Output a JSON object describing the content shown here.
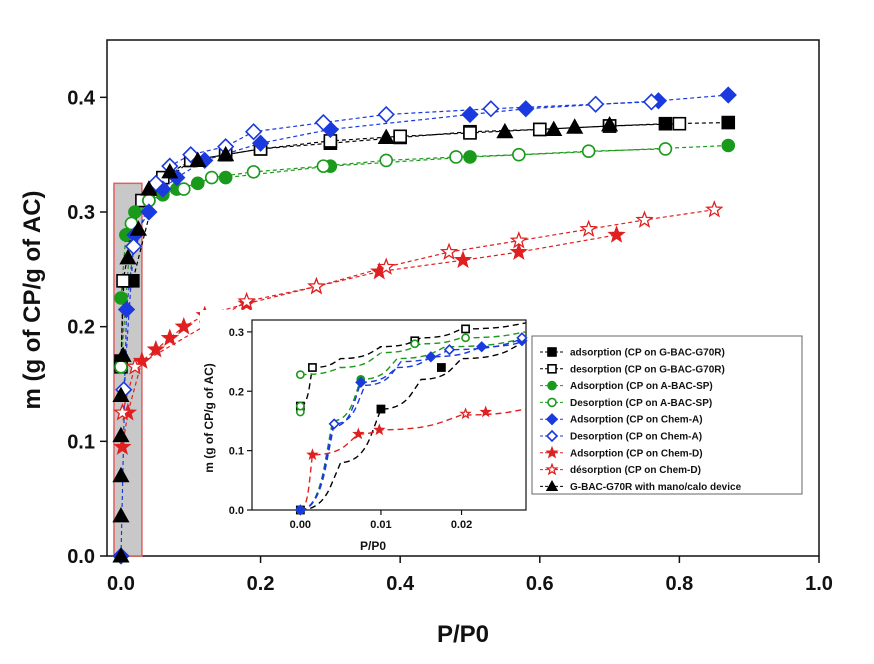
{
  "chart_data": [
    {
      "type": "scatter",
      "xlabel": "P/P0",
      "ylabel": "m (g of CP/g of AC)",
      "xlim": [
        -0.02,
        1.0
      ],
      "ylim": [
        0.0,
        0.45
      ],
      "xticks": [
        "0.0",
        "0.2",
        "0.4",
        "0.6",
        "0.8",
        "1.0"
      ],
      "yticks": [
        "0.0",
        "0.1",
        "0.2",
        "0.3",
        "0.4"
      ],
      "xtick_values": [
        0.0,
        0.2,
        0.4,
        0.6,
        0.8,
        1.0
      ],
      "ytick_values": [
        0.0,
        0.1,
        0.2,
        0.3,
        0.4
      ],
      "grid": false,
      "highlight_region": {
        "x": [
          -0.01,
          0.03
        ],
        "y": [
          0.0,
          0.325
        ],
        "fill": "#c8c8c8",
        "edge": "#e06060"
      },
      "series": [
        {
          "name": "adsorption (CP on G-BAC-G70R)",
          "color": "#000000",
          "marker": "square",
          "filled": true,
          "x": [
            0.0,
            0.004,
            0.008,
            0.017,
            0.05,
            0.1,
            0.15,
            0.2,
            0.3,
            0.4,
            0.5,
            0.6,
            0.7,
            0.78,
            0.87
          ],
          "y": [
            0.17,
            0.24,
            0.24,
            0.24,
            0.32,
            0.345,
            0.35,
            0.355,
            0.36,
            0.365,
            0.37,
            0.372,
            0.375,
            0.377,
            0.378
          ]
        },
        {
          "name": "desorption (CP on G-BAC-G70R)",
          "color": "#000000",
          "marker": "square",
          "filled": false,
          "x": [
            0.0,
            0.003,
            0.015,
            0.03,
            0.06,
            0.1,
            0.15,
            0.2,
            0.3,
            0.4,
            0.5,
            0.6,
            0.7,
            0.8
          ],
          "y": [
            0.165,
            0.24,
            0.28,
            0.31,
            0.33,
            0.345,
            0.35,
            0.355,
            0.362,
            0.366,
            0.369,
            0.372,
            0.375,
            0.377
          ]
        },
        {
          "name": "Adsorption (CP on A-BAC-SP)",
          "color": "#1a9a1a",
          "marker": "circle",
          "filled": true,
          "x": [
            0.0,
            0.007,
            0.02,
            0.04,
            0.06,
            0.08,
            0.11,
            0.15,
            0.3,
            0.5,
            0.87
          ],
          "y": [
            0.225,
            0.28,
            0.3,
            0.31,
            0.315,
            0.32,
            0.325,
            0.33,
            0.34,
            0.348,
            0.358
          ]
        },
        {
          "name": "Desorption (CP on A-BAC-SP)",
          "color": "#1a9a1a",
          "marker": "circle",
          "filled": false,
          "x": [
            0.0,
            0.015,
            0.04,
            0.09,
            0.13,
            0.19,
            0.29,
            0.38,
            0.48,
            0.57,
            0.67,
            0.78
          ],
          "y": [
            0.165,
            0.29,
            0.31,
            0.32,
            0.33,
            0.335,
            0.34,
            0.345,
            0.348,
            0.35,
            0.353,
            0.355
          ]
        },
        {
          "name": "Adsorption (CP on Chem-A)",
          "color": "#1a3adf",
          "marker": "diamond",
          "filled": true,
          "x": [
            0.0,
            0.008,
            0.02,
            0.04,
            0.06,
            0.08,
            0.12,
            0.2,
            0.3,
            0.5,
            0.58,
            0.77,
            0.87
          ],
          "y": [
            0.0,
            0.215,
            0.28,
            0.3,
            0.32,
            0.33,
            0.345,
            0.36,
            0.372,
            0.385,
            0.39,
            0.397,
            0.402
          ]
        },
        {
          "name": "Desorption (CP on Chem-A)",
          "color": "#1a3adf",
          "marker": "diamond",
          "filled": false,
          "x": [
            0.004,
            0.018,
            0.05,
            0.07,
            0.1,
            0.15,
            0.19,
            0.29,
            0.38,
            0.53,
            0.68,
            0.76
          ],
          "y": [
            0.145,
            0.27,
            0.325,
            0.34,
            0.35,
            0.357,
            0.37,
            0.378,
            0.385,
            0.39,
            0.394,
            0.396
          ]
        },
        {
          "name": "Adsorption (CP on Chem-D)",
          "color": "#e02020",
          "marker": "star",
          "filled": true,
          "x": [
            0.002,
            0.01,
            0.03,
            0.05,
            0.07,
            0.09,
            0.12,
            0.18,
            0.28,
            0.37,
            0.49,
            0.57,
            0.71
          ],
          "y": [
            0.095,
            0.125,
            0.17,
            0.18,
            0.19,
            0.2,
            0.21,
            0.22,
            0.235,
            0.248,
            0.258,
            0.265,
            0.28
          ]
        },
        {
          "name": "désorption (CP on Chem-D)",
          "color": "#e02020",
          "marker": "star",
          "filled": false,
          "x": [
            0.002,
            0.02,
            0.18,
            0.28,
            0.38,
            0.47,
            0.57,
            0.67,
            0.75,
            0.85
          ],
          "y": [
            0.125,
            0.165,
            0.222,
            0.235,
            0.252,
            0.265,
            0.275,
            0.285,
            0.293,
            0.302
          ]
        },
        {
          "name": "G-BAC-G70R with mano/calo device",
          "color": "#000000",
          "marker": "triangle",
          "filled": true,
          "x": [
            0.0,
            0.0,
            0.0,
            0.0,
            0.0,
            0.003,
            0.01,
            0.025,
            0.04,
            0.07,
            0.11,
            0.15,
            0.38,
            0.55,
            0.62,
            0.65,
            0.7
          ],
          "y": [
            0.0,
            0.035,
            0.07,
            0.105,
            0.14,
            0.175,
            0.26,
            0.285,
            0.32,
            0.335,
            0.345,
            0.35,
            0.365,
            0.37,
            0.372,
            0.374,
            0.376
          ]
        }
      ]
    },
    {
      "type": "line",
      "xlabel": "P/P0",
      "ylabel": "m (g of CP/g of AC)",
      "xlim": [
        -0.006,
        0.028
      ],
      "ylim": [
        0.0,
        0.32
      ],
      "xticks": [
        "0.00",
        "0.01",
        "0.02"
      ],
      "yticks": [
        "0.0",
        "0.1",
        "0.2",
        "0.3"
      ],
      "xtick_values": [
        0.0,
        0.01,
        0.02
      ],
      "ytick_values": [
        0.0,
        0.1,
        0.2,
        0.3
      ],
      "legend_position": "right-center",
      "series": [
        {
          "name": "adsorption (CP on G-BAC-G70R)",
          "color": "#000000",
          "marker": "square",
          "filled": true,
          "x": [
            0.0,
            0.01,
            0.0175
          ],
          "y": [
            0.0,
            0.17,
            0.24
          ],
          "trend_x": [
            0.0,
            0.005,
            0.01,
            0.015,
            0.02,
            0.028
          ],
          "trend_y": [
            0.0,
            0.08,
            0.17,
            0.22,
            0.255,
            0.285
          ]
        },
        {
          "name": "desorption (CP on G-BAC-G70R)",
          "color": "#000000",
          "marker": "square",
          "filled": false,
          "x": [
            0.0,
            0.0015,
            0.0142,
            0.0205
          ],
          "y": [
            0.175,
            0.24,
            0.285,
            0.305
          ],
          "trend_x": [
            0.0,
            0.0015,
            0.005,
            0.01,
            0.015,
            0.02,
            0.028
          ],
          "trend_y": [
            0.175,
            0.24,
            0.255,
            0.275,
            0.29,
            0.305,
            0.315
          ]
        },
        {
          "name": "Adsorption (CP on A-BAC-SP)",
          "color": "#1a9a1a",
          "marker": "circle",
          "filled": true,
          "x": [
            0.0,
            0.0075
          ],
          "y": [
            0.0,
            0.22
          ],
          "trend_x": [
            0.0,
            0.004,
            0.0075,
            0.012,
            0.018,
            0.028
          ],
          "trend_y": [
            0.0,
            0.15,
            0.22,
            0.255,
            0.275,
            0.29
          ]
        },
        {
          "name": "Desorption (CP on A-BAC-SP)",
          "color": "#1a9a1a",
          "marker": "circle",
          "filled": false,
          "x": [
            0.0,
            0.0,
            0.0,
            0.0142,
            0.0205
          ],
          "y": [
            0.165,
            0.175,
            0.228,
            0.28,
            0.29
          ],
          "trend_x": [
            0.0,
            0.005,
            0.01,
            0.015,
            0.02,
            0.028
          ],
          "trend_y": [
            0.228,
            0.24,
            0.265,
            0.28,
            0.29,
            0.3
          ]
        },
        {
          "name": "Adsorption (CP on Chem-A)",
          "color": "#1a3adf",
          "marker": "diamond",
          "filled": true,
          "x": [
            0.0,
            0.0075,
            0.0162,
            0.0225,
            0.0275
          ],
          "y": [
            0.0,
            0.215,
            0.258,
            0.275,
            0.285
          ],
          "trend_x": [
            0.0,
            0.004,
            0.0075,
            0.012,
            0.0162,
            0.0225,
            0.028
          ],
          "trend_y": [
            0.0,
            0.14,
            0.215,
            0.24,
            0.258,
            0.275,
            0.285
          ]
        },
        {
          "name": "Desorption (CP on Chem-A)",
          "color": "#1a3adf",
          "marker": "diamond",
          "filled": false,
          "x": [
            0.0042,
            0.0185,
            0.0275
          ],
          "y": [
            0.145,
            0.27,
            0.29
          ],
          "trend_x": [
            0.0,
            0.0042,
            0.008,
            0.0125,
            0.0185,
            0.028
          ],
          "trend_y": [
            0.0,
            0.145,
            0.21,
            0.25,
            0.27,
            0.29
          ]
        },
        {
          "name": "Adsorption (CP on Chem-D)",
          "color": "#e02020",
          "marker": "star",
          "filled": true,
          "x": [
            0.0015,
            0.0072,
            0.0098,
            0.023
          ],
          "y": [
            0.093,
            0.128,
            0.135,
            0.165
          ],
          "trend_x": [
            0.0,
            0.0015,
            0.0072,
            0.0098,
            0.02,
            0.028
          ],
          "trend_y": [
            0.0,
            0.093,
            0.128,
            0.135,
            0.16,
            0.17
          ]
        },
        {
          "name": "désorption (CP on Chem-D)",
          "color": "#e02020",
          "marker": "star",
          "filled": false,
          "x": [
            0.0205
          ],
          "y": [
            0.162
          ],
          "trend_x": [],
          "trend_y": []
        },
        {
          "name": "G-BAC-G70R with mano/calo device",
          "color": "#000000",
          "marker": "triangle",
          "filled": true,
          "x": [],
          "y": [],
          "trend_x": [],
          "trend_y": []
        }
      ]
    }
  ]
}
